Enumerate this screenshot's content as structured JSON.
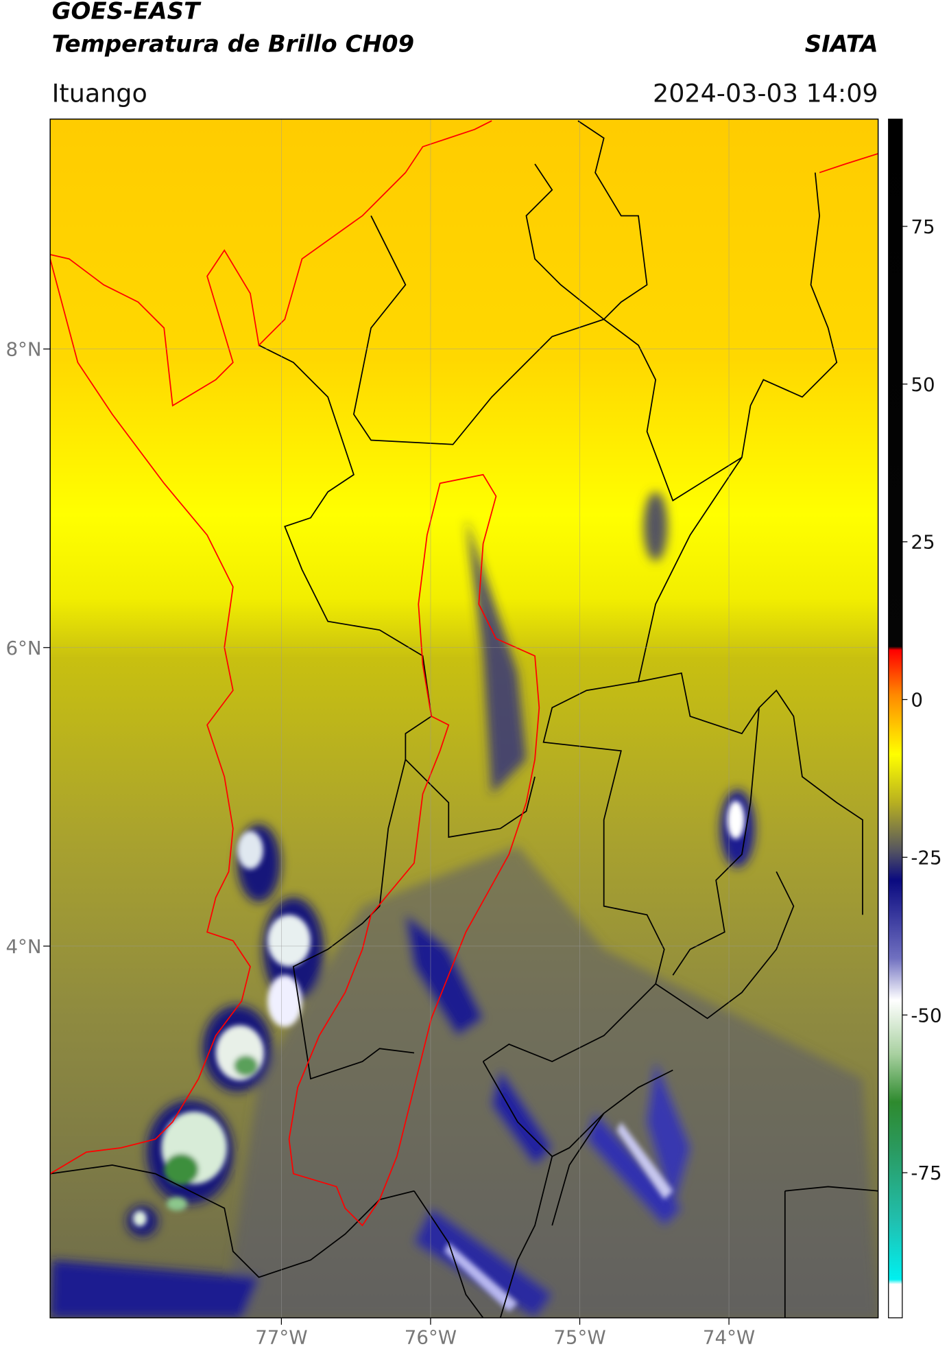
{
  "chart_data": {
    "type": "map",
    "title": "GOES-EAST",
    "subtitle": "Temperatura de Brillo CH09",
    "source": "SIATA",
    "region": "Ituango",
    "timestamp": "2024-03-03 14:09",
    "xlim": [
      -78.55,
      -73.0
    ],
    "ylim": [
      1.51,
      9.54
    ],
    "xticks": [
      {
        "value": -77,
        "label": "77°W"
      },
      {
        "value": -76,
        "label": "76°W"
      },
      {
        "value": -75,
        "label": "75°W"
      },
      {
        "value": -74,
        "label": "74°W"
      }
    ],
    "yticks": [
      {
        "value": 8,
        "label": "8°N"
      },
      {
        "value": 6,
        "label": "6°N"
      },
      {
        "value": 4,
        "label": "4°N"
      }
    ],
    "grid": true,
    "colorbar": {
      "clim": [
        -98,
        92
      ],
      "ticks": [
        75,
        50,
        25,
        0,
        -25,
        -50,
        -75
      ]
    }
  }
}
